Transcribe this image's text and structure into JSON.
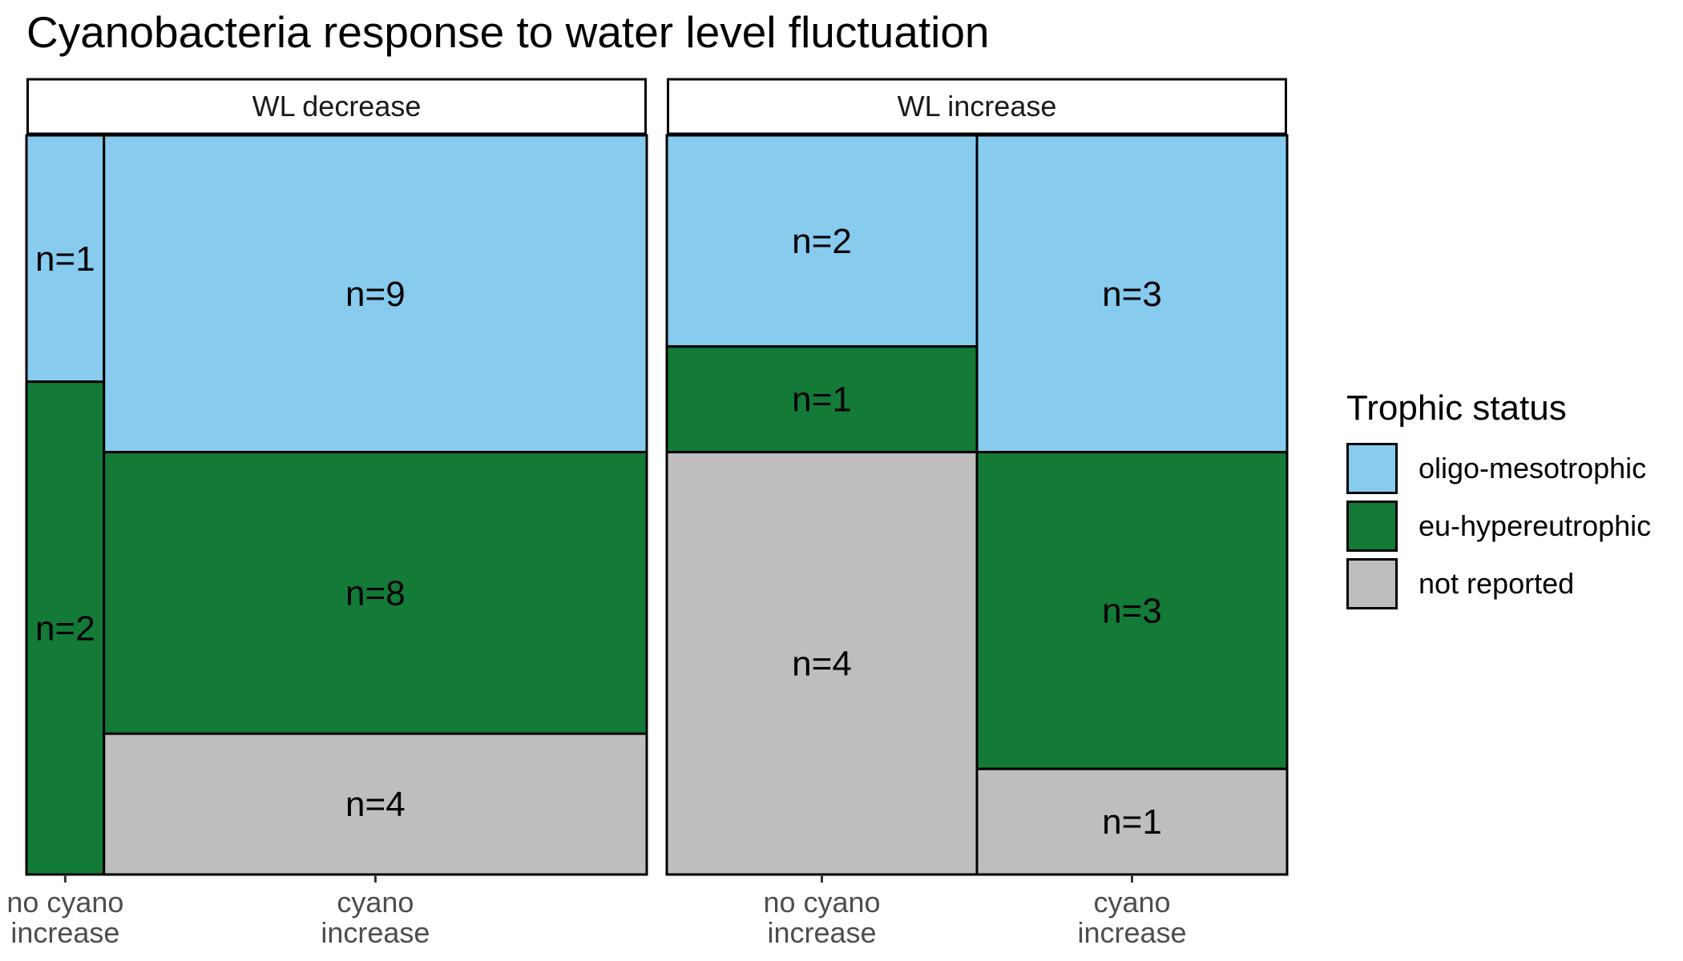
{
  "title": "Cyanobacteria response to water level fluctuation",
  "legend": {
    "title": "Trophic status",
    "items": [
      {
        "label": "oligo-mesotrophic",
        "color": "#87CBEE"
      },
      {
        "label": "eu-hypereutrophic",
        "color": "#147A37"
      },
      {
        "label": "not reported",
        "color": "#BEBEBE"
      }
    ]
  },
  "chart_data": {
    "type": "mosaic",
    "title": "Cyanobacteria response to water level fluctuation",
    "facets": [
      {
        "name": "WL decrease",
        "columns": [
          {
            "category": "no cyano increase",
            "label_lines": [
              "no cyano",
              "increase"
            ],
            "segments": [
              {
                "status": "oligo-mesotrophic",
                "n": 1,
                "label": "n=1"
              },
              {
                "status": "eu-hypereutrophic",
                "n": 2,
                "label": "n=2"
              }
            ]
          },
          {
            "category": "cyano increase",
            "label_lines": [
              "cyano",
              "increase"
            ],
            "segments": [
              {
                "status": "oligo-mesotrophic",
                "n": 9,
                "label": "n=9"
              },
              {
                "status": "eu-hypereutrophic",
                "n": 8,
                "label": "n=8"
              },
              {
                "status": "not reported",
                "n": 4,
                "label": "n=4"
              }
            ]
          }
        ]
      },
      {
        "name": "WL increase",
        "columns": [
          {
            "category": "no cyano increase",
            "label_lines": [
              "no cyano",
              "increase"
            ],
            "segments": [
              {
                "status": "oligo-mesotrophic",
                "n": 2,
                "label": "n=2"
              },
              {
                "status": "eu-hypereutrophic",
                "n": 1,
                "label": "n=1"
              },
              {
                "status": "not reported",
                "n": 4,
                "label": "n=4"
              }
            ]
          },
          {
            "category": "cyano increase",
            "label_lines": [
              "cyano",
              "increase"
            ],
            "segments": [
              {
                "status": "oligo-mesotrophic",
                "n": 3,
                "label": "n=3"
              },
              {
                "status": "eu-hypereutrophic",
                "n": 3,
                "label": "n=3"
              },
              {
                "status": "not reported",
                "n": 1,
                "label": "n=1"
              }
            ]
          }
        ]
      }
    ]
  }
}
